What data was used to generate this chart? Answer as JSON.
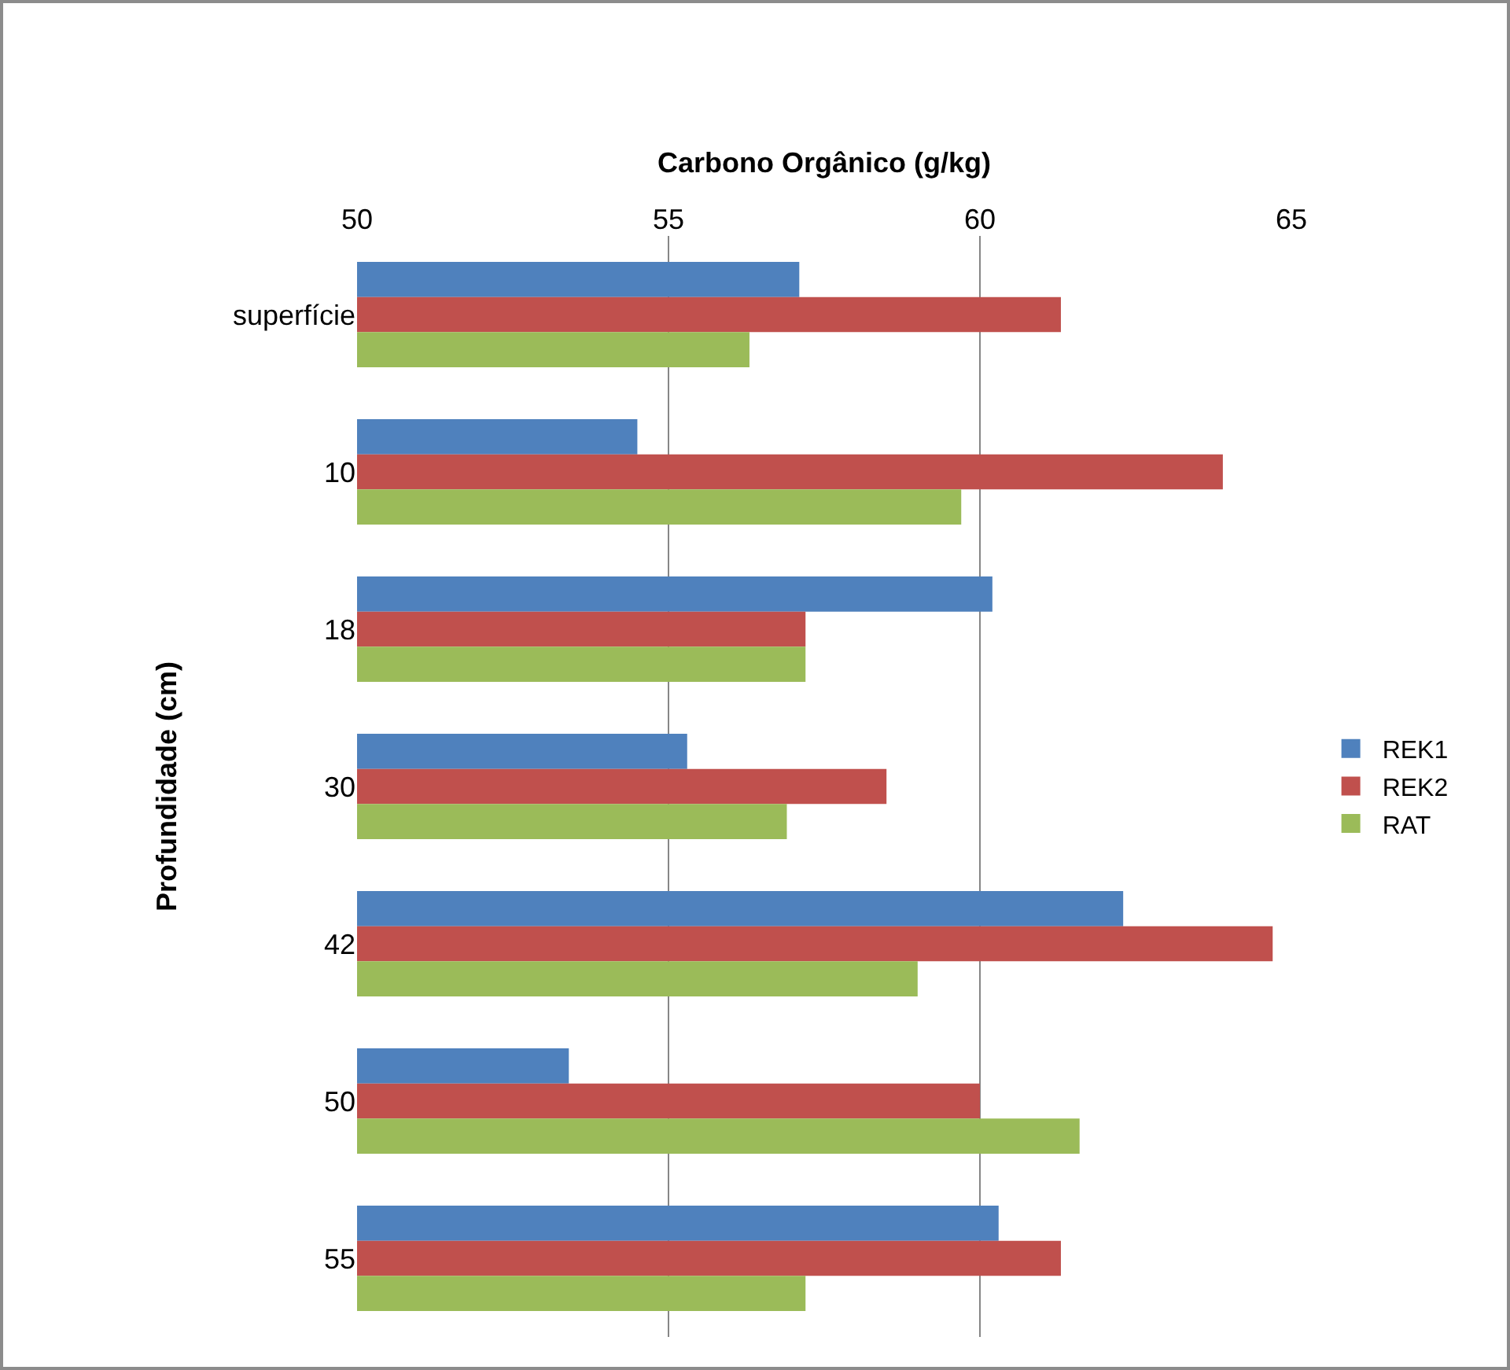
{
  "chart_data": {
    "type": "bar",
    "orientation": "horizontal",
    "xlabel": "Carbono Orgânico (g/kg)",
    "ylabel": "Profundidade (cm)",
    "categories": [
      "superfície",
      "10",
      "18",
      "30",
      "42",
      "50",
      "55"
    ],
    "series": [
      {
        "name": "REK1",
        "color": "#4f81bd",
        "values": [
          57.1,
          54.5,
          60.2,
          55.3,
          62.3,
          53.4,
          60.3
        ]
      },
      {
        "name": "REK2",
        "color": "#c0504d",
        "values": [
          61.3,
          63.9,
          57.2,
          58.5,
          64.7,
          60.0,
          61.3
        ]
      },
      {
        "name": "RAT",
        "color": "#9bbb59",
        "values": [
          56.3,
          59.7,
          57.2,
          56.9,
          59.0,
          61.6,
          57.2
        ]
      }
    ],
    "xlim": [
      50,
      65
    ],
    "xticks": [
      50,
      55,
      60,
      65
    ],
    "grid": "x",
    "legend": "right"
  }
}
